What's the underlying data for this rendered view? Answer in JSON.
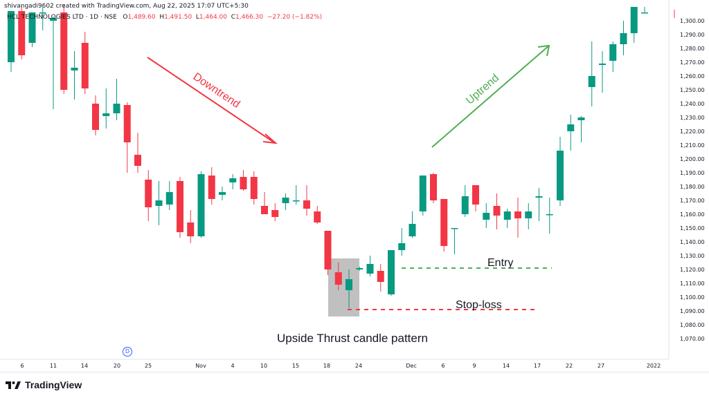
{
  "header": {
    "note": "shivangadi9602 created with TradingView.com, Aug 22, 2025 17:07 UTC+5:30",
    "symbol": "HCL TECHNOLOGIES LTD · 1D · NSE",
    "o_label": "O",
    "o": "1,489.60",
    "h_label": "H",
    "h": "1,491.50",
    "l_label": "L",
    "l": "1,464.00",
    "c_label": "C",
    "c": "1,466.30",
    "change": "−27.20 (−1.82%)"
  },
  "footer": {
    "brand": "TradingView"
  },
  "event_marker": "D",
  "annotations": {
    "downtrend": "Downtrend",
    "uptrend": "Uptrend",
    "entry": "Entry",
    "stop_loss": "Stop-loss",
    "pattern": "Upside Thrust candle pattern"
  },
  "colors": {
    "up": "#089981",
    "down": "#f23645",
    "uptrend_arrow": "#4caf50",
    "downtrend_arrow": "#f23645",
    "box": "#9e9e9e"
  },
  "chart_data": {
    "type": "candlestick",
    "ylim": [
      1060,
      1310
    ],
    "y_ticks": [
      "1,300.00",
      "1,290.00",
      "1,280.00",
      "1,270.00",
      "1,260.00",
      "1,250.00",
      "1,240.00",
      "1,230.00",
      "1,220.00",
      "1,210.00",
      "1,200.00",
      "1,190.00",
      "1,180.00",
      "1,170.00",
      "1,160.00",
      "1,150.00",
      "1,140.00",
      "1,130.00",
      "1,120.00",
      "1,110.00",
      "1,100.00",
      "1,090.00",
      "1,080.00",
      "1,070.00"
    ],
    "x_ticks": [
      "6",
      "11",
      "14",
      "20",
      "25",
      "Nov",
      "4",
      "10",
      "15",
      "18",
      "24",
      "Dec",
      "6",
      "9",
      "14",
      "17",
      "22",
      "27",
      "2022"
    ],
    "candles": [
      {
        "o": 1270,
        "h": 1307,
        "l": 1263,
        "c": 1307
      },
      {
        "o": 1307,
        "h": 1311,
        "l": 1272,
        "c": 1275
      },
      {
        "o": 1284,
        "h": 1306,
        "l": 1281,
        "c": 1306
      },
      {
        "o": 1306,
        "h": 1310,
        "l": 1293,
        "c": 1306
      },
      {
        "o": 1300,
        "h": 1303,
        "l": 1236,
        "c": 1302
      },
      {
        "o": 1306,
        "h": 1312,
        "l": 1247,
        "c": 1250
      },
      {
        "o": 1264,
        "h": 1278,
        "l": 1243,
        "c": 1266
      },
      {
        "o": 1284,
        "h": 1292,
        "l": 1247,
        "c": 1251
      },
      {
        "o": 1240,
        "h": 1246,
        "l": 1217,
        "c": 1221
      },
      {
        "o": 1231,
        "h": 1251,
        "l": 1222,
        "c": 1233
      },
      {
        "o": 1233,
        "h": 1258,
        "l": 1228,
        "c": 1240
      },
      {
        "o": 1239,
        "h": 1241,
        "l": 1190,
        "c": 1212
      },
      {
        "o": 1203,
        "h": 1219,
        "l": 1190,
        "c": 1195
      },
      {
        "o": 1185,
        "h": 1192,
        "l": 1155,
        "c": 1165
      },
      {
        "o": 1166,
        "h": 1184,
        "l": 1152,
        "c": 1170
      },
      {
        "o": 1167,
        "h": 1184,
        "l": 1163,
        "c": 1176
      },
      {
        "o": 1184,
        "h": 1187,
        "l": 1143,
        "c": 1147
      },
      {
        "o": 1154,
        "h": 1163,
        "l": 1139,
        "c": 1144
      },
      {
        "o": 1144,
        "h": 1191,
        "l": 1143,
        "c": 1189
      },
      {
        "o": 1188,
        "h": 1194,
        "l": 1167,
        "c": 1171
      },
      {
        "o": 1174,
        "h": 1180,
        "l": 1170,
        "c": 1176
      },
      {
        "o": 1183,
        "h": 1189,
        "l": 1178,
        "c": 1186
      },
      {
        "o": 1187,
        "h": 1192,
        "l": 1177,
        "c": 1178
      },
      {
        "o": 1187,
        "h": 1191,
        "l": 1167,
        "c": 1171
      },
      {
        "o": 1166,
        "h": 1176,
        "l": 1160,
        "c": 1160
      },
      {
        "o": 1163,
        "h": 1168,
        "l": 1155,
        "c": 1158
      },
      {
        "o": 1168,
        "h": 1175,
        "l": 1163,
        "c": 1172
      },
      {
        "o": 1170,
        "h": 1181,
        "l": 1167,
        "c": 1170
      },
      {
        "o": 1170,
        "h": 1181,
        "l": 1159,
        "c": 1164
      },
      {
        "o": 1162,
        "h": 1166,
        "l": 1153,
        "c": 1154
      },
      {
        "o": 1148,
        "h": 1148,
        "l": 1116,
        "c": 1120
      },
      {
        "o": 1118,
        "h": 1125,
        "l": 1105,
        "c": 1109
      },
      {
        "o": 1105,
        "h": 1120,
        "l": 1092,
        "c": 1113
      },
      {
        "o": 1120,
        "h": 1122,
        "l": 1119,
        "c": 1121
      },
      {
        "o": 1117,
        "h": 1130,
        "l": 1115,
        "c": 1124
      },
      {
        "o": 1119,
        "h": 1124,
        "l": 1104,
        "c": 1111
      },
      {
        "o": 1102,
        "h": 1134,
        "l": 1101,
        "c": 1134
      },
      {
        "o": 1134,
        "h": 1150,
        "l": 1130,
        "c": 1139
      },
      {
        "o": 1144,
        "h": 1162,
        "l": 1143,
        "c": 1153
      },
      {
        "o": 1162,
        "h": 1188,
        "l": 1159,
        "c": 1188
      },
      {
        "o": 1189,
        "h": 1190,
        "l": 1168,
        "c": 1170
      },
      {
        "o": 1171,
        "h": 1171,
        "l": 1133,
        "c": 1137
      },
      {
        "o": 1150,
        "h": 1150,
        "l": 1131,
        "c": 1150
      },
      {
        "o": 1160,
        "h": 1181,
        "l": 1158,
        "c": 1173
      },
      {
        "o": 1181,
        "h": 1181,
        "l": 1162,
        "c": 1167
      },
      {
        "o": 1156,
        "h": 1168,
        "l": 1150,
        "c": 1161
      },
      {
        "o": 1166,
        "h": 1175,
        "l": 1149,
        "c": 1159
      },
      {
        "o": 1156,
        "h": 1164,
        "l": 1150,
        "c": 1162
      },
      {
        "o": 1162,
        "h": 1172,
        "l": 1143,
        "c": 1157
      },
      {
        "o": 1157,
        "h": 1168,
        "l": 1149,
        "c": 1162
      },
      {
        "o": 1172,
        "h": 1179,
        "l": 1155,
        "c": 1173
      },
      {
        "o": 1160,
        "h": 1172,
        "l": 1146,
        "c": 1160
      },
      {
        "o": 1170,
        "h": 1216,
        "l": 1166,
        "c": 1206
      },
      {
        "o": 1220,
        "h": 1232,
        "l": 1206,
        "c": 1225
      },
      {
        "o": 1228,
        "h": 1231,
        "l": 1212,
        "c": 1230
      },
      {
        "o": 1252,
        "h": 1285,
        "l": 1238,
        "c": 1260
      },
      {
        "o": 1268,
        "h": 1278,
        "l": 1248,
        "c": 1269
      },
      {
        "o": 1271,
        "h": 1285,
        "l": 1263,
        "c": 1283
      },
      {
        "o": 1283,
        "h": 1300,
        "l": 1275,
        "c": 1291
      },
      {
        "o": 1291,
        "h": 1310,
        "l": 1284,
        "c": 1310
      },
      {
        "o": 1306,
        "h": 1310,
        "l": 1306,
        "c": 1306
      }
    ],
    "entry_level": 1121,
    "stop_loss_level": 1091
  }
}
